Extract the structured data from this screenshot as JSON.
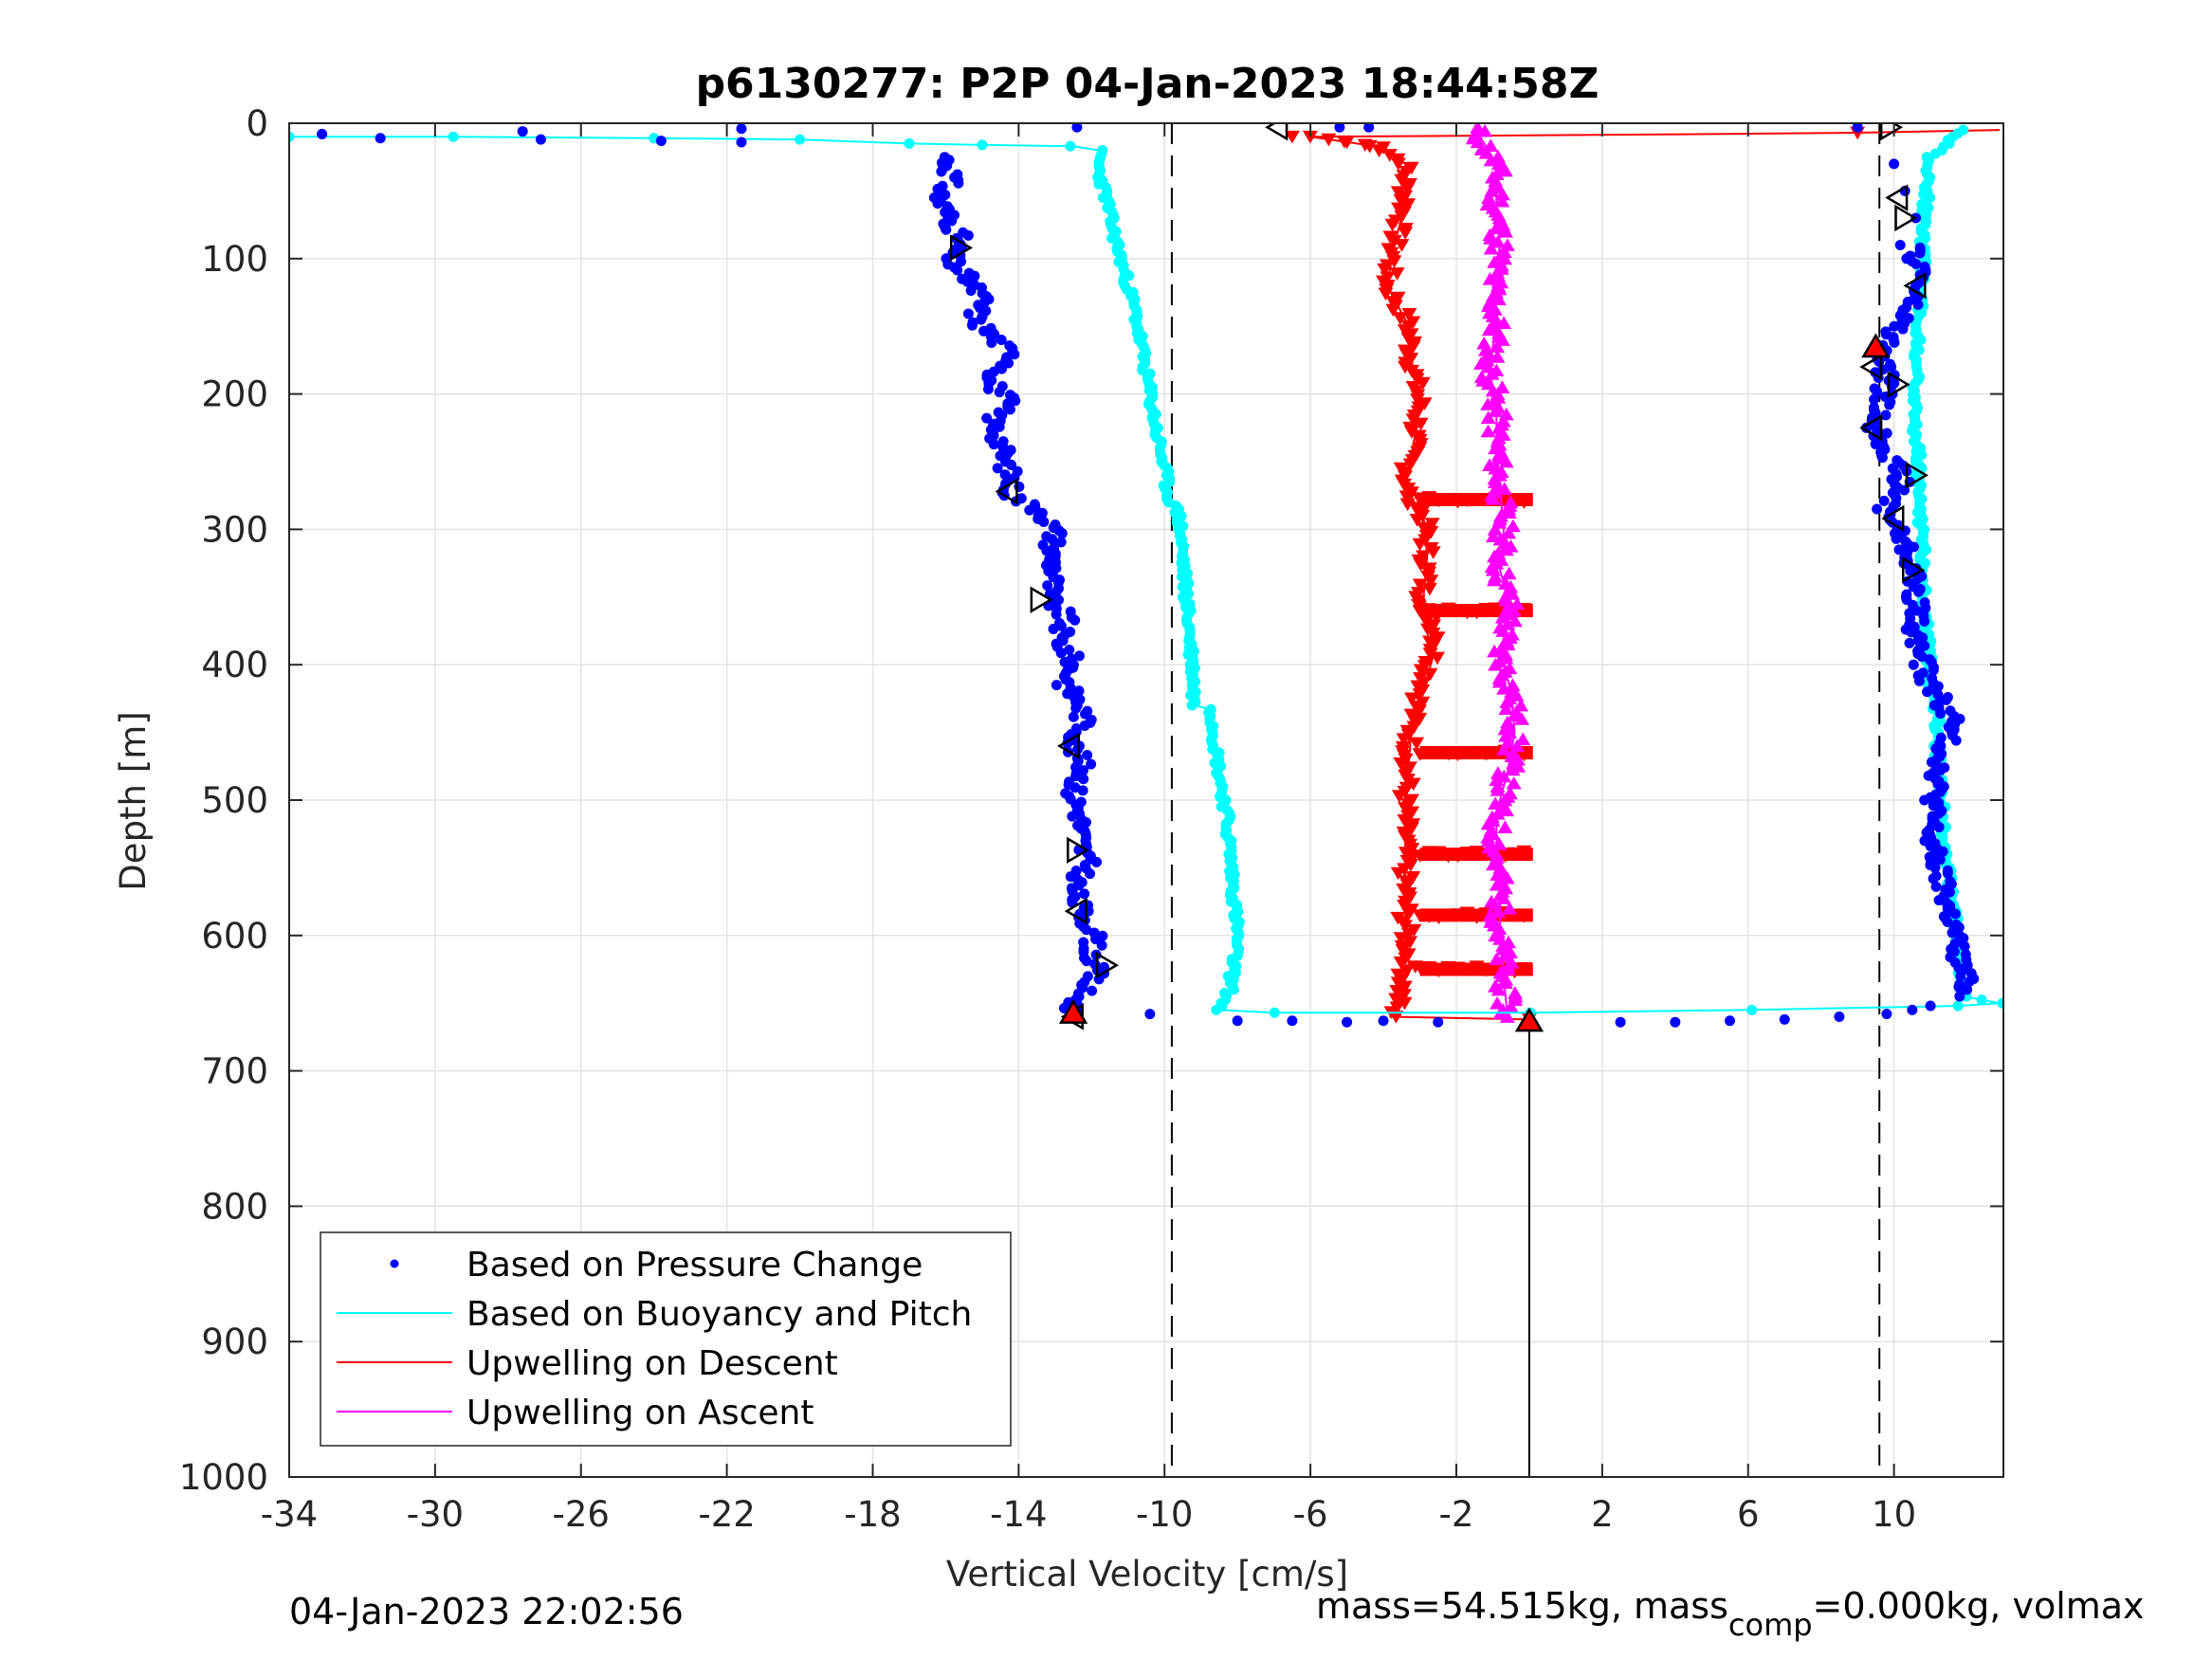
{
  "chart_data": {
    "type": "scatter",
    "title": "p6130277: P2P 04-Jan-2023 18:44:58Z",
    "xlabel": "Vertical Velocity [cm/s]",
    "ylabel": "Depth [m]",
    "xlim": [
      -34,
      13
    ],
    "ylim": [
      0,
      1000
    ],
    "y_reversed": true,
    "grid": true,
    "xticks": [
      -34,
      -30,
      -26,
      -22,
      -18,
      -14,
      -10,
      -6,
      -2,
      2,
      6,
      10
    ],
    "yticks": [
      0,
      100,
      200,
      300,
      400,
      500,
      600,
      700,
      800,
      900,
      1000
    ],
    "reference_lines": {
      "dashed_x": [
        -9.8,
        9.6
      ],
      "solid_x": [
        0
      ]
    },
    "legend": {
      "placement": "bottom-left"
    },
    "series": [
      {
        "name": "Based on Pressure Change",
        "style": "dots",
        "color": "#0000ff",
        "points": [
          [
            -33.1,
            8
          ],
          [
            -31.5,
            11
          ],
          [
            -27.6,
            6
          ],
          [
            -27.1,
            12
          ],
          [
            -23.8,
            13
          ],
          [
            -21.6,
            4
          ],
          [
            -21.6,
            14
          ],
          [
            -12.4,
            3
          ],
          [
            -5.2,
            3
          ],
          [
            -4.4,
            3
          ],
          [
            9.0,
            3
          ],
          [
            -16.0,
            25
          ],
          [
            -15.8,
            40
          ],
          [
            -16.2,
            55
          ],
          [
            -15.9,
            70
          ],
          [
            -15.6,
            85
          ],
          [
            -15.9,
            100
          ],
          [
            -15.4,
            115
          ],
          [
            -15.0,
            130
          ],
          [
            -15.2,
            145
          ],
          [
            -14.6,
            160
          ],
          [
            -14.1,
            175
          ],
          [
            -14.8,
            190
          ],
          [
            -14.3,
            205
          ],
          [
            -14.7,
            220
          ],
          [
            -14.5,
            235
          ],
          [
            -14.4,
            250
          ],
          [
            -14.2,
            262
          ],
          [
            -14.2,
            275
          ],
          [
            -13.3,
            288
          ],
          [
            -13.0,
            303
          ],
          [
            -13.1,
            318
          ],
          [
            -13.0,
            333
          ],
          [
            -13.2,
            350
          ],
          [
            -12.7,
            365
          ],
          [
            -12.9,
            380
          ],
          [
            -12.5,
            398
          ],
          [
            -12.7,
            415
          ],
          [
            -12.3,
            430
          ],
          [
            -12.2,
            445
          ],
          [
            -12.5,
            460
          ],
          [
            -12.2,
            478
          ],
          [
            -12.5,
            495
          ],
          [
            -12.3,
            512
          ],
          [
            -12.3,
            530
          ],
          [
            -12.1,
            548
          ],
          [
            -12.5,
            565
          ],
          [
            -12.3,
            582
          ],
          [
            -11.9,
            598
          ],
          [
            -12.0,
            612
          ],
          [
            -11.9,
            628
          ],
          [
            -12.3,
            643
          ],
          [
            -12.6,
            658
          ],
          [
            -10.4,
            658
          ],
          [
            -8.0,
            663
          ],
          [
            -6.5,
            663
          ],
          [
            -5.0,
            664
          ],
          [
            -4.0,
            663
          ],
          [
            -2.5,
            664
          ],
          [
            0.0,
            664
          ],
          [
            2.5,
            664
          ],
          [
            4.0,
            664
          ],
          [
            5.5,
            663
          ],
          [
            7.0,
            662
          ],
          [
            8.5,
            660
          ],
          [
            9.8,
            658
          ],
          [
            10.5,
            655
          ],
          [
            11.0,
            652
          ],
          [
            11.8,
            645
          ],
          [
            10.0,
            30
          ],
          [
            10.3,
            50
          ],
          [
            10.6,
            70
          ],
          [
            10.4,
            90
          ],
          [
            10.8,
            110
          ],
          [
            10.5,
            130
          ],
          [
            10.1,
            150
          ],
          [
            9.6,
            170
          ],
          [
            9.8,
            190
          ],
          [
            9.6,
            210
          ],
          [
            9.5,
            225
          ],
          [
            9.9,
            245
          ],
          [
            10.2,
            265
          ],
          [
            9.8,
            285
          ],
          [
            10.2,
            305
          ],
          [
            10.5,
            325
          ],
          [
            10.6,
            350
          ],
          [
            10.6,
            380
          ],
          [
            10.9,
            410
          ],
          [
            11.6,
            440
          ],
          [
            11.3,
            470
          ],
          [
            11.1,
            500
          ],
          [
            11.0,
            530
          ],
          [
            11.3,
            560
          ],
          [
            11.6,
            590
          ],
          [
            11.8,
            620
          ],
          [
            12.0,
            640
          ]
        ]
      },
      {
        "name": "Based on Buoyancy and Pitch",
        "style": "line-with-markers",
        "color": "#00ffff",
        "points": [
          [
            -34,
            10
          ],
          [
            -29.5,
            10
          ],
          [
            -24,
            11
          ],
          [
            -20,
            12
          ],
          [
            -17,
            15
          ],
          [
            -15,
            16
          ],
          [
            -12.5,
            17
          ],
          [
            -11.8,
            20
          ],
          [
            -11.8,
            35
          ],
          [
            -11.6,
            55
          ],
          [
            -11.4,
            80
          ],
          [
            -11.1,
            110
          ],
          [
            -10.8,
            140
          ],
          [
            -10.6,
            170
          ],
          [
            -10.4,
            200
          ],
          [
            -10.2,
            230
          ],
          [
            -10.0,
            255
          ],
          [
            -9.9,
            275
          ],
          [
            -9.6,
            290
          ],
          [
            -9.5,
            320
          ],
          [
            -9.4,
            350
          ],
          [
            -9.3,
            380
          ],
          [
            -9.2,
            410
          ],
          [
            -9.2,
            430
          ],
          [
            -8.7,
            433
          ],
          [
            -8.6,
            460
          ],
          [
            -8.5,
            480
          ],
          [
            -8.3,
            510
          ],
          [
            -8.2,
            540
          ],
          [
            -8.1,
            570
          ],
          [
            -8.0,
            600
          ],
          [
            -8.1,
            620
          ],
          [
            -8.2,
            640
          ],
          [
            -8.5,
            655
          ],
          [
            -7.0,
            657
          ],
          [
            0,
            657
          ],
          [
            6,
            655
          ],
          [
            11.8,
            652
          ],
          [
            12.9,
            650
          ],
          [
            11.9,
            645
          ],
          [
            11.8,
            620
          ],
          [
            11.7,
            590
          ],
          [
            11.5,
            560
          ],
          [
            11.4,
            530
          ],
          [
            11.3,
            500
          ],
          [
            11.2,
            470
          ],
          [
            11.2,
            440
          ],
          [
            11.0,
            410
          ],
          [
            10.9,
            380
          ],
          [
            10.8,
            350
          ],
          [
            10.8,
            320
          ],
          [
            10.7,
            290
          ],
          [
            10.7,
            260
          ],
          [
            10.6,
            230
          ],
          [
            10.6,
            200
          ],
          [
            10.6,
            170
          ],
          [
            10.7,
            140
          ],
          [
            10.8,
            110
          ],
          [
            10.8,
            80
          ],
          [
            10.9,
            50
          ],
          [
            11.0,
            25
          ],
          [
            11.9,
            5
          ]
        ]
      },
      {
        "name": "Upwelling on Descent",
        "style": "line-with-triangles-down",
        "color": "#ff0000",
        "points": [
          [
            12.9,
            5
          ],
          [
            9,
            7
          ],
          [
            5,
            8
          ],
          [
            -6,
            10
          ],
          [
            -4.2,
            17
          ],
          [
            -3.4,
            30
          ],
          [
            -3.4,
            60
          ],
          [
            -3.7,
            90
          ],
          [
            -3.9,
            120
          ],
          [
            -3.3,
            150
          ],
          [
            -3.2,
            180
          ],
          [
            -3.0,
            210
          ],
          [
            -3.2,
            240
          ],
          [
            -3.4,
            270
          ],
          [
            -2.9,
            290
          ],
          [
            -2.8,
            320
          ],
          [
            -2.9,
            350
          ],
          [
            -2.5,
            380
          ],
          [
            -2.8,
            410
          ],
          [
            -3.2,
            440
          ],
          [
            -3.3,
            470
          ],
          [
            -3.4,
            500
          ],
          [
            -3.4,
            530
          ],
          [
            -3.4,
            560
          ],
          [
            -3.4,
            590
          ],
          [
            -3.3,
            620
          ],
          [
            -3.6,
            650
          ],
          [
            -3.8,
            660
          ],
          [
            0,
            662
          ]
        ],
        "horizontal_bands_depths": [
          278,
          360,
          465,
          540,
          585,
          625
        ]
      },
      {
        "name": "Upwelling on Ascent",
        "style": "line-with-triangles-up",
        "color": "#ff00ff",
        "points": [
          [
            -1.5,
            3
          ],
          [
            -0.9,
            30
          ],
          [
            -0.9,
            60
          ],
          [
            -0.8,
            90
          ],
          [
            -1.0,
            120
          ],
          [
            -0.9,
            150
          ],
          [
            -1.1,
            180
          ],
          [
            -0.9,
            210
          ],
          [
            -0.9,
            240
          ],
          [
            -0.8,
            270
          ],
          [
            -0.7,
            300
          ],
          [
            -0.8,
            330
          ],
          [
            -0.5,
            360
          ],
          [
            -0.8,
            390
          ],
          [
            -0.5,
            420
          ],
          [
            -0.4,
            450
          ],
          [
            -0.6,
            480
          ],
          [
            -0.9,
            510
          ],
          [
            -0.9,
            540
          ],
          [
            -0.8,
            570
          ],
          [
            -0.8,
            600
          ],
          [
            -0.7,
            630
          ],
          [
            -0.6,
            660
          ]
        ]
      }
    ],
    "annotation_markers": {
      "open_triangles": [
        [
          -6.9,
          3,
          "left"
        ],
        [
          9.9,
          3,
          "right"
        ],
        [
          -15.6,
          92,
          "right"
        ],
        [
          -14.3,
          272,
          "left"
        ],
        [
          -13.4,
          352,
          "right"
        ],
        [
          -12.6,
          460,
          "left"
        ],
        [
          -12.4,
          537,
          "right"
        ],
        [
          -12.4,
          582,
          "left"
        ],
        [
          -11.6,
          622,
          "right"
        ],
        [
          -12.5,
          660,
          "left"
        ],
        [
          10.1,
          55,
          "left"
        ],
        [
          10.3,
          70,
          "right"
        ],
        [
          10.6,
          120,
          "left"
        ],
        [
          9.4,
          180,
          "left"
        ],
        [
          10.1,
          193,
          "right"
        ],
        [
          9.4,
          225,
          "left"
        ],
        [
          10.6,
          260,
          "right"
        ],
        [
          10.0,
          292,
          "left"
        ],
        [
          10.5,
          330,
          "right"
        ]
      ],
      "filled_red_triangles": [
        [
          -12.5,
          657
        ],
        [
          0.0,
          663
        ],
        [
          9.5,
          165
        ]
      ]
    },
    "footer": {
      "timestamp": "04-Jan-2023 22:02:56",
      "mass_text": "mass=54.515kg, mass",
      "mass_sub": "comp",
      "mass_rest": "=0.000kg, volmax"
    }
  }
}
